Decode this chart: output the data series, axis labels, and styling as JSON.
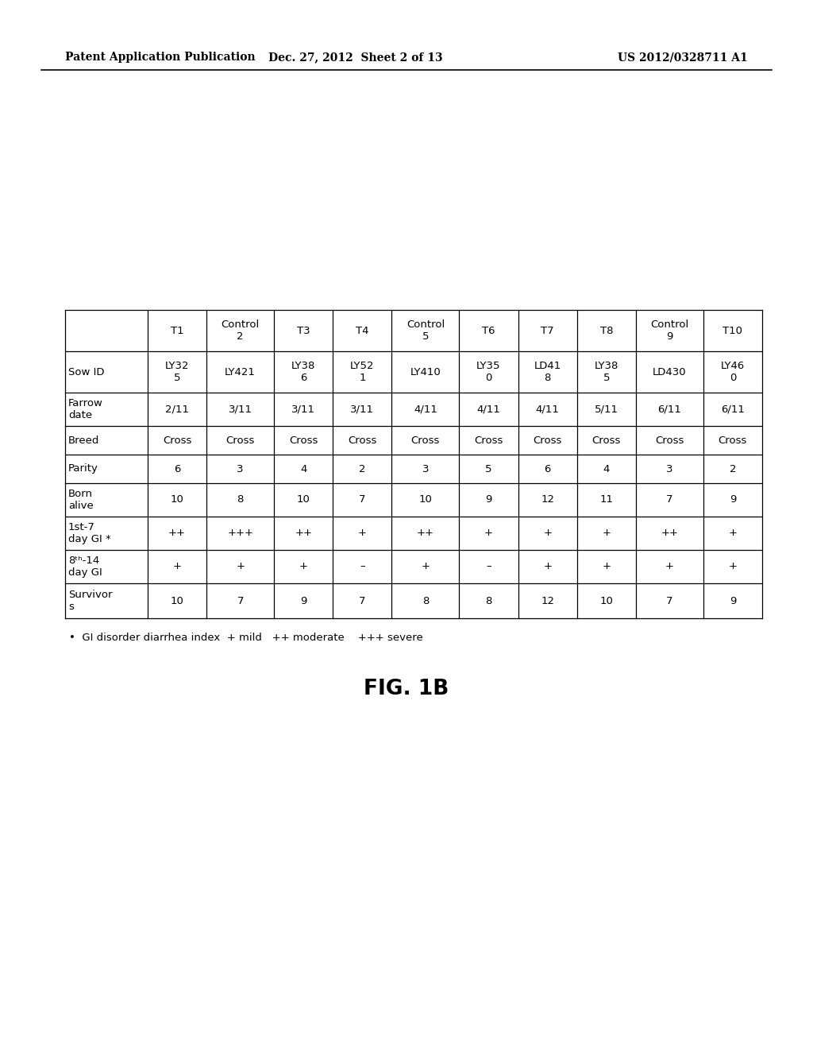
{
  "header_left": "Patent Application Publication",
  "header_mid": "Dec. 27, 2012  Sheet 2 of 13",
  "header_right": "US 2012/0328711 A1",
  "figure_label": "FIG. 1B",
  "footnote": "•  GI disorder diarrhea index  + mild   ++ moderate    +++ severe",
  "col_headers": [
    "",
    "T1",
    "Control\n2",
    "T3",
    "T4",
    "Control\n5",
    "T6",
    "T7",
    "T8",
    "Control\n9",
    "T10"
  ],
  "rows": [
    [
      "Sow ID",
      "LY32\n5",
      "LY421",
      "LY38\n6",
      "LY52\n1",
      "LY410",
      "LY35\n0",
      "LD41\n8",
      "LY38\n5",
      "LD430",
      "LY46\n0"
    ],
    [
      "Farrow\ndate",
      "2/11",
      "3/11",
      "3/11",
      "3/11",
      "4/11",
      "4/11",
      "4/11",
      "5/11",
      "6/11",
      "6/11"
    ],
    [
      "Breed",
      "Cross",
      "Cross",
      "Cross",
      "Cross",
      "Cross",
      "Cross",
      "Cross",
      "Cross",
      "Cross",
      "Cross"
    ],
    [
      "Parity",
      "6",
      "3",
      "4",
      "2",
      "3",
      "5",
      "6",
      "4",
      "3",
      "2"
    ],
    [
      "Born\nalive",
      "10",
      "8",
      "10",
      "7",
      "10",
      "9",
      "12",
      "11",
      "7",
      "9"
    ],
    [
      "1st-7\nday GI *",
      "++",
      "+++",
      "++",
      "+",
      "++",
      "+",
      "+",
      "+",
      "++",
      "+"
    ],
    [
      "8ᵗʰ-14\nday GI",
      "+",
      "+",
      "+",
      "–",
      "+",
      "–",
      "+",
      "+",
      "+",
      "+"
    ],
    [
      "Survivor\ns",
      "10",
      "7",
      "9",
      "7",
      "8",
      "8",
      "12",
      "10",
      "7",
      "9"
    ]
  ],
  "background_color": "#ffffff"
}
